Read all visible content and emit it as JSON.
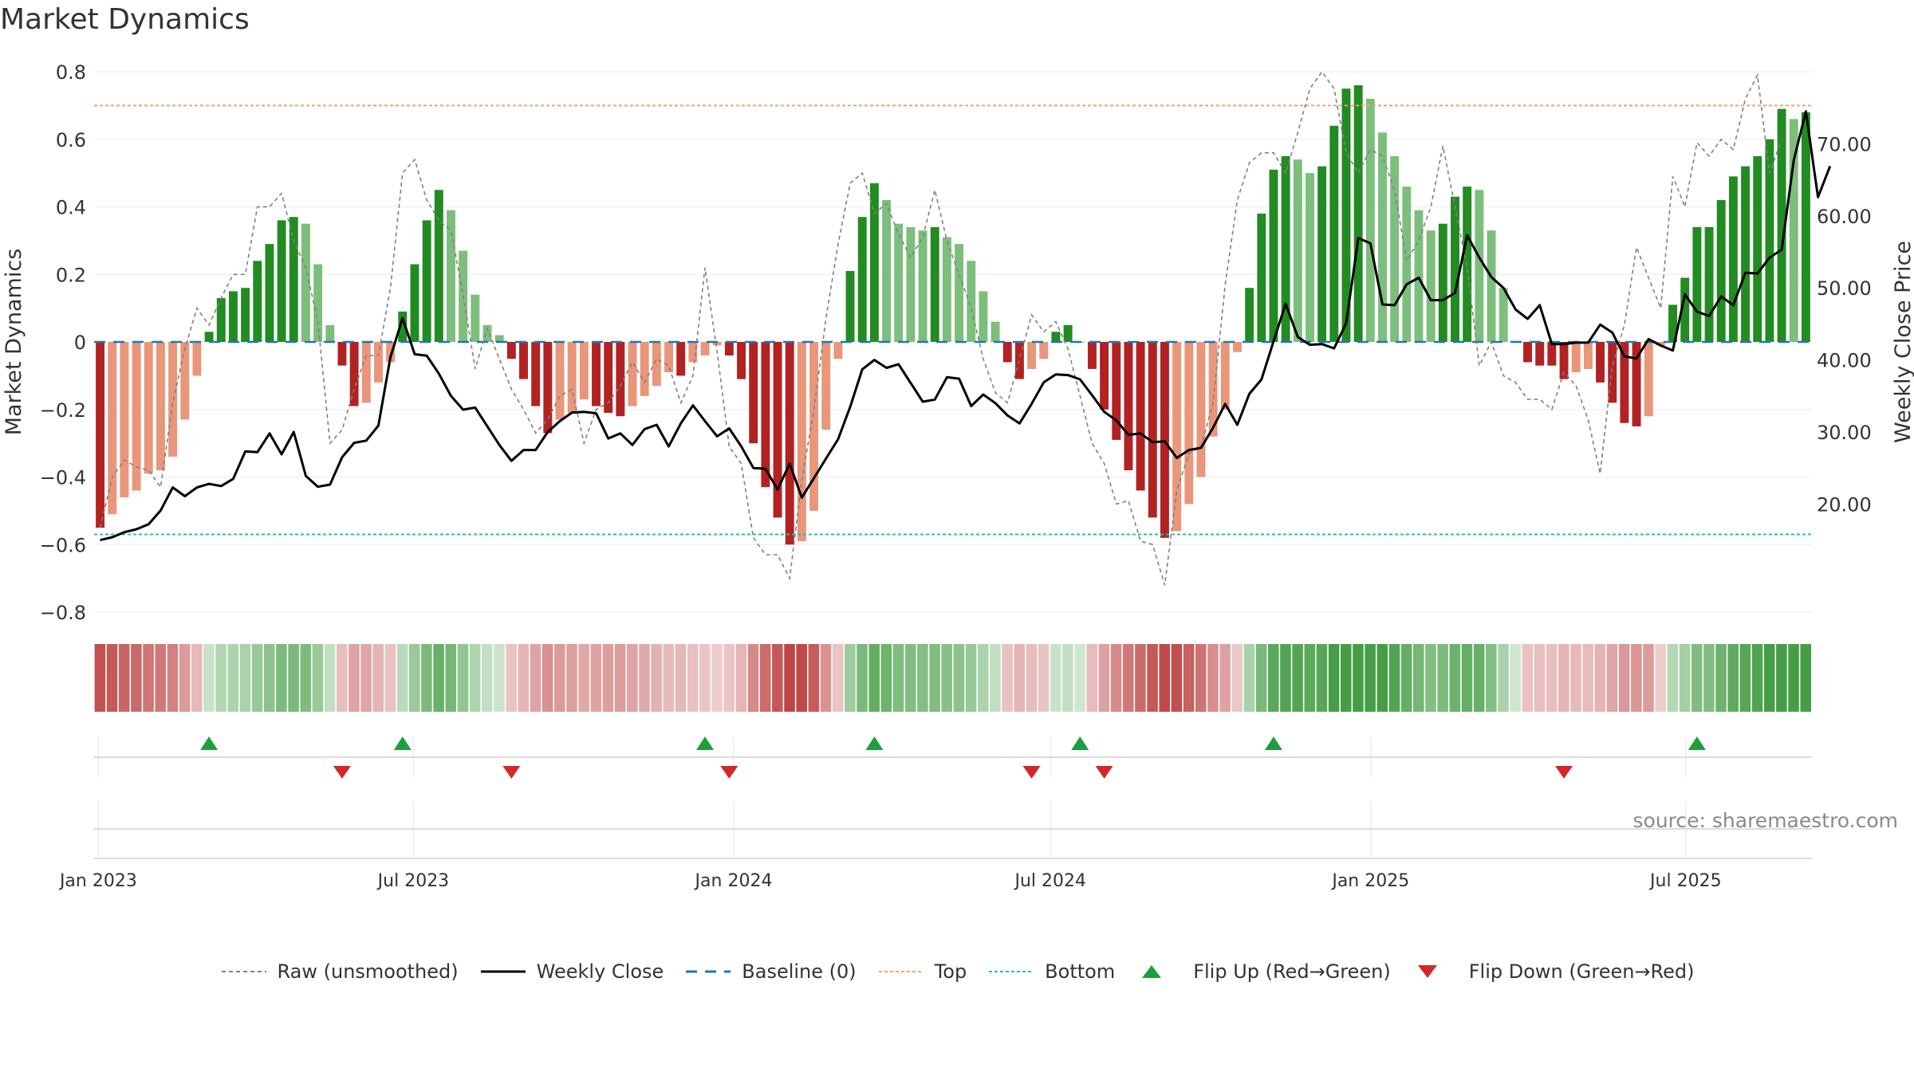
{
  "title": "Market Dynamics",
  "source": "source: sharemaestro.com",
  "colors": {
    "dark_green": "#228b22",
    "light_green": "#7dbe7d",
    "dark_red": "#b22222",
    "light_red": "#e9967a",
    "raw": "#808080",
    "close": "#000000",
    "baseline": "#1f77b4",
    "top": "#f4a460",
    "bottom": "#20c0c0",
    "flip_up": "#1e9e3e",
    "flip_down": "#d62728"
  },
  "chart_data": {
    "type": "bar",
    "title": "Market Dynamics",
    "ylabel": "Market Dynamics",
    "y2label": "Weekly Close Price",
    "ylim": [
      -0.8,
      0.8
    ],
    "y2lim": [
      5.0,
      80.0
    ],
    "yticks": [
      "0.8",
      "0.6",
      "0.4",
      "0.2",
      "0",
      "−0.2",
      "−0.4",
      "−0.6",
      "−0.8"
    ],
    "y2ticks": [
      "70.00",
      "60.00",
      "50.00",
      "40.00",
      "30.00",
      "20.00"
    ],
    "xticks": [
      "Jan 2023",
      "Jul 2023",
      "Jan 2024",
      "Jul 2024",
      "Jan 2025",
      "Jul 2025"
    ],
    "top_level": 0.7,
    "bottom_level": -0.57,
    "baseline": 0,
    "bars": [
      -0.55,
      -0.51,
      -0.46,
      -0.44,
      -0.39,
      -0.38,
      -0.34,
      -0.23,
      -0.1,
      0.03,
      0.13,
      0.15,
      0.16,
      0.24,
      0.29,
      0.36,
      0.37,
      0.35,
      0.23,
      0.05,
      -0.07,
      -0.19,
      -0.18,
      -0.12,
      -0.06,
      0.09,
      0.23,
      0.36,
      0.45,
      0.39,
      0.27,
      0.14,
      0.05,
      0.02,
      -0.05,
      -0.11,
      -0.19,
      -0.27,
      -0.23,
      -0.21,
      -0.17,
      -0.19,
      -0.21,
      -0.22,
      -0.19,
      -0.16,
      -0.13,
      -0.09,
      -0.1,
      -0.06,
      -0.04,
      -0.01,
      -0.04,
      -0.11,
      -0.3,
      -0.43,
      -0.52,
      -0.6,
      -0.59,
      -0.5,
      -0.26,
      -0.05,
      0.21,
      0.37,
      0.47,
      0.42,
      0.35,
      0.34,
      0.33,
      0.34,
      0.31,
      0.29,
      0.24,
      0.15,
      0.06,
      -0.06,
      -0.11,
      -0.08,
      -0.05,
      0.03,
      0.05,
      0.0,
      -0.08,
      -0.2,
      -0.29,
      -0.38,
      -0.44,
      -0.52,
      -0.58,
      -0.56,
      -0.48,
      -0.4,
      -0.28,
      -0.2,
      -0.03,
      0.16,
      0.38,
      0.51,
      0.55,
      0.54,
      0.5,
      0.52,
      0.64,
      0.75,
      0.76,
      0.72,
      0.62,
      0.55,
      0.46,
      0.39,
      0.33,
      0.35,
      0.43,
      0.46,
      0.45,
      0.33,
      0.16,
      0.0,
      -0.06,
      -0.07,
      -0.07,
      -0.11,
      -0.09,
      -0.08,
      -0.12,
      -0.18,
      -0.24,
      -0.25,
      -0.22,
      -0.01,
      0.11,
      0.19,
      0.34,
      0.34,
      0.42,
      0.49,
      0.52,
      0.55,
      0.6,
      0.69,
      0.66,
      0.68
    ],
    "raw": [
      -0.55,
      -0.4,
      -0.35,
      -0.37,
      -0.38,
      -0.43,
      -0.18,
      -0.02,
      0.1,
      0.05,
      0.13,
      0.2,
      0.2,
      0.4,
      0.4,
      0.44,
      0.3,
      0.22,
      0.06,
      -0.3,
      -0.26,
      -0.14,
      -0.04,
      -0.04,
      0.16,
      0.5,
      0.54,
      0.42,
      0.36,
      0.33,
      0.14,
      -0.08,
      0.04,
      -0.05,
      -0.14,
      -0.2,
      -0.27,
      -0.23,
      -0.16,
      -0.14,
      -0.3,
      -0.2,
      -0.18,
      -0.13,
      -0.06,
      -0.12,
      -0.05,
      -0.07,
      -0.18,
      -0.1,
      0.22,
      -0.03,
      -0.31,
      -0.36,
      -0.58,
      -0.63,
      -0.63,
      -0.7,
      -0.41,
      -0.2,
      0.07,
      0.29,
      0.47,
      0.5,
      0.38,
      0.41,
      0.32,
      0.25,
      0.31,
      0.45,
      0.3,
      0.2,
      0.1,
      -0.05,
      -0.15,
      -0.18,
      -0.05,
      0.08,
      0.03,
      0.06,
      -0.02,
      -0.16,
      -0.3,
      -0.36,
      -0.48,
      -0.47,
      -0.59,
      -0.6,
      -0.72,
      -0.44,
      -0.33,
      -0.31,
      -0.18,
      0.17,
      0.42,
      0.53,
      0.56,
      0.56,
      0.5,
      0.62,
      0.75,
      0.8,
      0.75,
      0.56,
      0.5,
      0.57,
      0.55,
      0.45,
      0.24,
      0.3,
      0.4,
      0.58,
      0.4,
      0.22,
      -0.07,
      0.0,
      -0.1,
      -0.12,
      -0.17,
      -0.17,
      -0.2,
      -0.09,
      -0.13,
      -0.23,
      -0.39,
      -0.07,
      0.05,
      0.28,
      0.19,
      0.1,
      0.49,
      0.4,
      0.59,
      0.55,
      0.6,
      0.57,
      0.72,
      0.79,
      0.5,
      0.6
    ],
    "close": [
      15.0,
      15.4,
      16.1,
      16.5,
      17.2,
      19.1,
      22.3,
      21.1,
      22.3,
      22.8,
      22.5,
      23.5,
      27.3,
      27.2,
      29.8,
      26.9,
      30.0,
      23.9,
      22.4,
      22.7,
      26.5,
      28.5,
      28.8,
      30.9,
      40.4,
      45.8,
      40.8,
      40.6,
      38.1,
      35.0,
      33.1,
      33.4,
      30.8,
      28.2,
      26.0,
      27.5,
      27.5,
      30.0,
      31.5,
      32.7,
      32.8,
      32.6,
      29.1,
      29.8,
      28.2,
      30.4,
      31.0,
      28.0,
      31.2,
      33.7,
      31.5,
      29.4,
      30.5,
      28.0,
      25.0,
      24.9,
      22.0,
      25.6,
      20.9,
      23.6,
      26.3,
      29.0,
      33.5,
      38.7,
      40.0,
      38.9,
      39.4,
      36.8,
      34.2,
      34.5,
      37.6,
      37.4,
      33.6,
      35.2,
      34.0,
      32.3,
      31.2,
      33.9,
      36.9,
      38.0,
      37.9,
      37.3,
      35.1,
      32.8,
      31.6,
      29.6,
      29.8,
      28.6,
      28.7,
      26.4,
      27.5,
      27.8,
      30.6,
      33.9,
      31.0,
      35.3,
      37.3,
      42.6,
      47.8,
      43.2,
      42.1,
      42.2,
      41.6,
      45.1,
      56.9,
      56.2,
      47.7,
      47.6,
      50.5,
      51.4,
      48.3,
      48.3,
      49.3,
      57.3,
      54.2,
      51.5,
      50.0,
      47.0,
      45.7,
      47.6,
      42.2,
      42.2,
      42.4,
      42.4,
      44.9,
      43.8,
      40.5,
      40.2,
      42.9,
      42.0,
      41.3,
      49.1,
      46.7,
      46.1,
      48.8,
      47.6,
      52.1,
      52.0,
      54.2,
      55.3,
      67.7,
      74.5,
      62.6,
      66.9
    ],
    "flip_up_weeks": [
      9,
      25,
      50,
      64,
      81,
      97,
      132
    ],
    "flip_down_weeks": [
      20,
      34,
      52,
      77,
      83,
      121
    ],
    "x_start": "2023-01-02",
    "x_end": "2025-09-08"
  },
  "legend": {
    "raw": "Raw (unsmoothed)",
    "close": "Weekly Close",
    "baseline": "Baseline (0)",
    "top": "Top",
    "bottom": "Bottom",
    "flip_up": "Flip Up (Red→Green)",
    "flip_down": "Flip Down (Green→Red)"
  }
}
